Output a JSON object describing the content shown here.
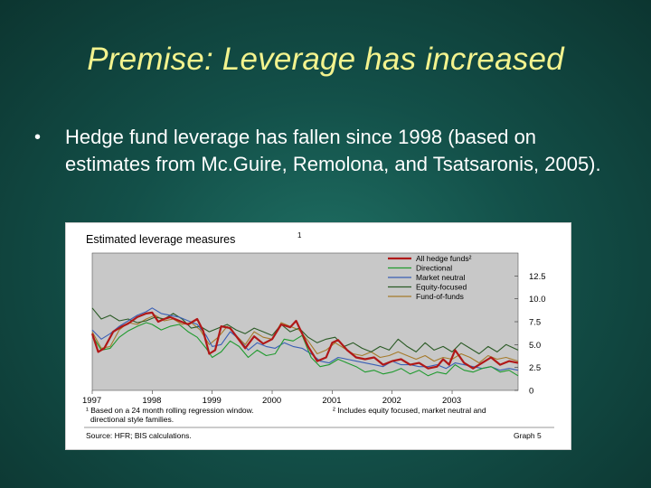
{
  "slide": {
    "title": "Premise: Leverage has increased",
    "bullet": "•",
    "bullet_text": "Hedge fund leverage has fallen since 1998 (based on estimates from Mc.Guire, Remolona, and Tsatsaronis, 2005)."
  },
  "chart_data": {
    "type": "line",
    "title": "Estimated leverage measures",
    "title_sup": "1",
    "source": "Source: HFR; BIS calculations.",
    "graph_label": "Graph 5",
    "footnote_1": "¹ Based on a 24 month rolling regression window.",
    "footnote_1b": "directional style families.",
    "footnote_2": "² Includes equity focused, market neutral and",
    "x_ticks": [
      "1997",
      "1998",
      "1999",
      "2000",
      "2001",
      "2002",
      "2003"
    ],
    "y_ticks": [
      "0",
      "2.5",
      "5.0",
      "7.5",
      "10.0",
      "12.5"
    ],
    "ylim": [
      0,
      15
    ],
    "xlim": [
      1997.0,
      2004.1
    ],
    "grid": false,
    "legend_position": "top-right",
    "colors": {
      "all": "#b01818",
      "directional": "#1f9a2e",
      "market_neutral": "#3a5fb5",
      "equity_focused": "#2a5a25",
      "fund_of_funds": "#a57a2a",
      "plot_bg": "#c8c8c8"
    },
    "series": [
      {
        "name": "All hedge funds²",
        "key": "all",
        "x": [
          1997.0,
          1997.1,
          1997.2,
          1997.35,
          1997.5,
          1997.6,
          1997.75,
          1997.9,
          1998.0,
          1998.1,
          1998.2,
          1998.3,
          1998.45,
          1998.6,
          1998.75,
          1998.85,
          1998.95,
          1999.05,
          1999.15,
          1999.3,
          1999.45,
          1999.55,
          1999.7,
          1999.85,
          2000.0,
          2000.15,
          2000.3,
          2000.4,
          2000.5,
          2000.6,
          2000.75,
          2000.9,
          2001.0,
          2001.1,
          2001.25,
          2001.4,
          2001.55,
          2001.7,
          2001.85,
          2002.0,
          2002.15,
          2002.3,
          2002.45,
          2002.6,
          2002.75,
          2002.85,
          2002.95,
          2003.05,
          2003.2,
          2003.35,
          2003.5,
          2003.65,
          2003.8,
          2003.95,
          2004.1
        ],
        "values": [
          6.2,
          4.2,
          4.6,
          6.4,
          7.0,
          7.3,
          8.0,
          8.4,
          8.5,
          7.5,
          7.8,
          8.0,
          7.6,
          7.2,
          7.8,
          6.5,
          4.0,
          4.4,
          7.0,
          6.8,
          5.5,
          4.6,
          5.9,
          5.1,
          5.6,
          7.2,
          6.9,
          7.6,
          6.2,
          4.8,
          3.2,
          3.6,
          5.2,
          5.5,
          4.4,
          3.6,
          3.4,
          3.6,
          2.8,
          3.2,
          3.4,
          2.8,
          3.0,
          2.4,
          2.6,
          3.4,
          2.8,
          4.4,
          3.0,
          2.4,
          3.0,
          3.6,
          2.8,
          3.2,
          3.0
        ]
      },
      {
        "name": "Directional",
        "key": "directional",
        "x": [
          1997.0,
          1997.15,
          1997.3,
          1997.45,
          1997.6,
          1997.75,
          1997.9,
          1998.0,
          1998.15,
          1998.3,
          1998.45,
          1998.6,
          1998.75,
          1998.9,
          1999.0,
          1999.15,
          1999.3,
          1999.45,
          1999.6,
          1999.75,
          1999.9,
          2000.05,
          2000.2,
          2000.35,
          2000.5,
          2000.65,
          2000.8,
          2000.95,
          2001.1,
          2001.25,
          2001.4,
          2001.55,
          2001.7,
          2001.85,
          2002.0,
          2002.15,
          2002.3,
          2002.45,
          2002.6,
          2002.75,
          2002.9,
          2003.05,
          2003.2,
          2003.35,
          2003.5,
          2003.65,
          2003.8,
          2003.95,
          2004.1
        ],
        "values": [
          6.0,
          4.4,
          4.6,
          5.8,
          6.5,
          7.0,
          7.4,
          7.2,
          6.6,
          7.0,
          7.2,
          6.4,
          5.8,
          4.6,
          3.6,
          4.2,
          5.4,
          4.8,
          3.6,
          4.4,
          3.8,
          4.0,
          5.6,
          5.4,
          6.0,
          3.6,
          2.6,
          2.8,
          3.4,
          3.0,
          2.6,
          2.0,
          2.2,
          1.8,
          2.0,
          2.4,
          1.8,
          2.2,
          1.6,
          2.0,
          1.8,
          2.8,
          2.2,
          2.0,
          2.4,
          2.6,
          2.0,
          2.2,
          1.6
        ]
      },
      {
        "name": "Market neutral",
        "key": "market_neutral",
        "x": [
          1997.0,
          1997.15,
          1997.3,
          1997.45,
          1997.6,
          1997.75,
          1997.9,
          1998.0,
          1998.15,
          1998.3,
          1998.45,
          1998.6,
          1998.75,
          1998.9,
          1999.0,
          1999.15,
          1999.3,
          1999.45,
          1999.6,
          1999.75,
          1999.9,
          2000.05,
          2000.2,
          2000.35,
          2000.5,
          2000.65,
          2000.8,
          2000.95,
          2001.1,
          2001.25,
          2001.4,
          2001.55,
          2001.7,
          2001.85,
          2002.0,
          2002.15,
          2002.3,
          2002.45,
          2002.6,
          2002.75,
          2002.9,
          2003.05,
          2003.2,
          2003.35,
          2003.5,
          2003.65,
          2003.8,
          2003.95,
          2004.1
        ],
        "values": [
          6.6,
          5.6,
          6.2,
          7.0,
          7.6,
          8.2,
          8.6,
          9.0,
          8.4,
          8.2,
          8.0,
          7.6,
          7.2,
          6.0,
          4.8,
          5.0,
          6.4,
          5.6,
          4.4,
          5.2,
          4.8,
          4.6,
          5.2,
          4.8,
          4.6,
          4.0,
          3.2,
          3.0,
          3.6,
          3.4,
          3.2,
          3.0,
          2.8,
          2.6,
          3.2,
          2.8,
          2.8,
          2.6,
          2.6,
          2.8,
          2.4,
          3.0,
          2.8,
          2.6,
          2.4,
          2.6,
          2.2,
          2.4,
          2.2
        ]
      },
      {
        "name": "Equity-focused",
        "key": "equity_focused",
        "x": [
          1997.0,
          1997.15,
          1997.3,
          1997.45,
          1997.6,
          1997.75,
          1997.9,
          1998.05,
          1998.2,
          1998.35,
          1998.5,
          1998.65,
          1998.8,
          1998.95,
          1999.1,
          1999.25,
          1999.4,
          1999.55,
          1999.7,
          1999.85,
          2000.0,
          2000.15,
          2000.3,
          2000.45,
          2000.6,
          2000.75,
          2000.9,
          2001.05,
          2001.2,
          2001.35,
          2001.5,
          2001.65,
          2001.8,
          2001.95,
          2002.1,
          2002.25,
          2002.4,
          2002.55,
          2002.7,
          2002.85,
          2003.0,
          2003.15,
          2003.3,
          2003.45,
          2003.6,
          2003.75,
          2003.9,
          2004.1
        ],
        "values": [
          9.0,
          7.8,
          8.2,
          7.6,
          7.8,
          7.4,
          7.6,
          8.0,
          7.8,
          8.4,
          7.8,
          6.8,
          7.0,
          6.4,
          6.8,
          7.2,
          6.6,
          6.2,
          6.8,
          6.4,
          6.0,
          7.2,
          6.4,
          6.8,
          5.8,
          5.2,
          5.6,
          5.8,
          4.8,
          5.2,
          4.6,
          4.2,
          4.8,
          4.4,
          5.6,
          4.8,
          4.2,
          5.2,
          4.4,
          4.8,
          4.2,
          5.2,
          4.6,
          4.0,
          4.8,
          4.2,
          5.0,
          4.4
        ]
      },
      {
        "name": "Fund-of-funds",
        "key": "fund_of_funds",
        "x": [
          1997.0,
          1997.15,
          1997.3,
          1997.45,
          1997.6,
          1997.75,
          1997.9,
          1998.05,
          1998.2,
          1998.35,
          1998.5,
          1998.65,
          1998.8,
          1998.95,
          1999.1,
          1999.25,
          1999.4,
          1999.55,
          1999.7,
          1999.85,
          2000.0,
          2000.15,
          2000.3,
          2000.45,
          2000.6,
          2000.75,
          2000.9,
          2001.05,
          2001.2,
          2001.35,
          2001.5,
          2001.65,
          2001.8,
          2001.95,
          2002.1,
          2002.25,
          2002.4,
          2002.55,
          2002.7,
          2002.85,
          2003.0,
          2003.15,
          2003.3,
          2003.45,
          2003.6,
          2003.75,
          2003.9,
          2004.1
        ],
        "values": [
          6.4,
          4.6,
          4.8,
          6.6,
          7.4,
          7.2,
          7.8,
          8.2,
          7.6,
          7.8,
          7.2,
          7.4,
          6.6,
          5.0,
          5.8,
          7.0,
          6.0,
          5.0,
          6.4,
          5.8,
          5.6,
          7.4,
          7.0,
          6.6,
          5.4,
          4.0,
          4.4,
          5.2,
          4.6,
          4.0,
          3.8,
          4.2,
          3.6,
          3.8,
          4.2,
          3.8,
          3.4,
          3.8,
          3.2,
          3.6,
          3.4,
          4.0,
          3.6,
          3.0,
          3.8,
          3.4,
          3.6,
          3.2
        ]
      }
    ]
  }
}
